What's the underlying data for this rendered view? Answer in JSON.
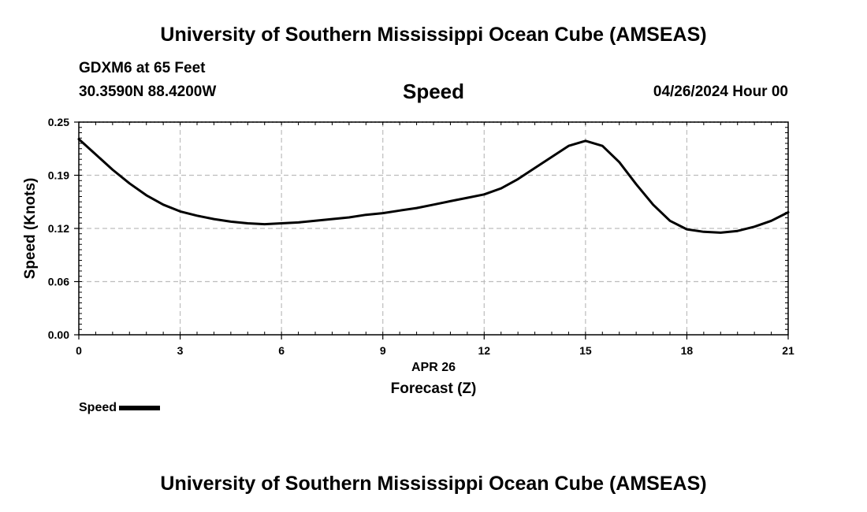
{
  "header": {
    "title": "University of Southern Mississippi Ocean Cube (AMSEAS)",
    "station": "GDXM6 at 65 Feet",
    "coordinates": "30.3590N  88.4200W",
    "date": "04/26/2024 Hour 00"
  },
  "footer": {
    "title": "University of Southern Mississippi Ocean Cube (AMSEAS)"
  },
  "chart_data": {
    "type": "line",
    "title": "Speed",
    "xlabel": "Forecast (Z)",
    "x_date_label": "APR 26",
    "ylabel": "Speed (Knots)",
    "xlim": [
      0,
      21
    ],
    "ylim": [
      0,
      0.25
    ],
    "x_ticks": [
      0,
      3,
      6,
      9,
      12,
      15,
      18,
      21
    ],
    "x_tick_labels": [
      "0",
      "3",
      "6",
      "9",
      "12",
      "15",
      "18",
      "21"
    ],
    "y_ticks": [
      0,
      0.0625,
      0.125,
      0.1875,
      0.25
    ],
    "y_tick_labels": [
      "0.00",
      "0.06",
      "0.12",
      "0.19",
      "0.25"
    ],
    "grid": true,
    "legend_position": "bottom-left",
    "series": [
      {
        "name": "Speed",
        "color": "#000000",
        "x": [
          0,
          0.5,
          1,
          1.5,
          2,
          2.5,
          3,
          3.5,
          4,
          4.5,
          5,
          5.5,
          6,
          6.5,
          7,
          7.5,
          8,
          8.5,
          9,
          9.5,
          10,
          10.5,
          11,
          11.5,
          12,
          12.5,
          13,
          13.5,
          14,
          14.5,
          15,
          15.5,
          16,
          16.5,
          17,
          17.5,
          18,
          18.5,
          19,
          19.5,
          20,
          20.5,
          21
        ],
        "values": [
          0.23,
          0.212,
          0.194,
          0.178,
          0.164,
          0.153,
          0.145,
          0.14,
          0.136,
          0.133,
          0.131,
          0.13,
          0.131,
          0.132,
          0.134,
          0.136,
          0.138,
          0.141,
          0.143,
          0.146,
          0.149,
          0.153,
          0.157,
          0.161,
          0.165,
          0.172,
          0.183,
          0.196,
          0.209,
          0.222,
          0.228,
          0.222,
          0.203,
          0.177,
          0.153,
          0.134,
          0.124,
          0.121,
          0.12,
          0.122,
          0.127,
          0.134,
          0.144
        ]
      }
    ]
  }
}
